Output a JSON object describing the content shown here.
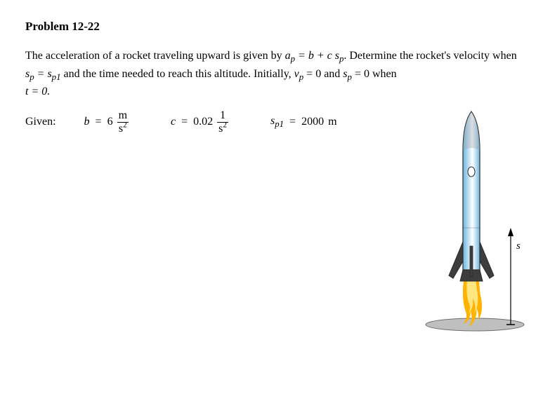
{
  "title": "Problem 12-22",
  "prose": {
    "line1_a": "The  acceleration of a rocket traveling upward is given by ",
    "eq1": "a",
    "eq1_sub": "p",
    "eq1_mid": " = b + c s",
    "eq1_sub2": "p",
    "line1_b": ". Determine the rocket's",
    "line2_a": "velocity when ",
    "eq2_lhs": "s",
    "eq2_lhs_sub": "p",
    "eq2_mid": " = s",
    "eq2_rhs_sub": "p1",
    "line2_b": " and the time needed to reach this altitude. Initially, ",
    "eq3_lhs": "v",
    "eq3_lhs_sub": "p",
    "eq3_rhs": " = 0 and ",
    "eq4_lhs": "s",
    "eq4_lhs_sub": "p",
    "eq4_rhs": " = 0 when",
    "line3": "t = 0."
  },
  "given": {
    "label": "Given:",
    "b": {
      "sym": "b",
      "op": "=",
      "val": "6",
      "unit_num": "m",
      "unit_den_base": "s",
      "unit_den_exp": "2"
    },
    "c": {
      "sym": "c",
      "op": "=",
      "val": "0.02",
      "unit_num": "1",
      "unit_den_base": "s",
      "unit_den_exp": "2"
    },
    "sp1": {
      "sym_base": "s",
      "sym_sub": "p1",
      "op": "=",
      "val": "2000",
      "unit": "m"
    }
  },
  "figure": {
    "axis_label": "s",
    "colors": {
      "rocket_body_light": "#c4e2f4",
      "rocket_body_dark": "#6fb6dd",
      "rocket_outline": "#2b2b2b",
      "nose": "#9aa0a6",
      "fin": "#3d3d3d",
      "flame_outer": "#ffb300",
      "flame_inner": "#ffe680",
      "ground": "#bfbfbf",
      "ground_edge": "#6e6e6e"
    }
  }
}
